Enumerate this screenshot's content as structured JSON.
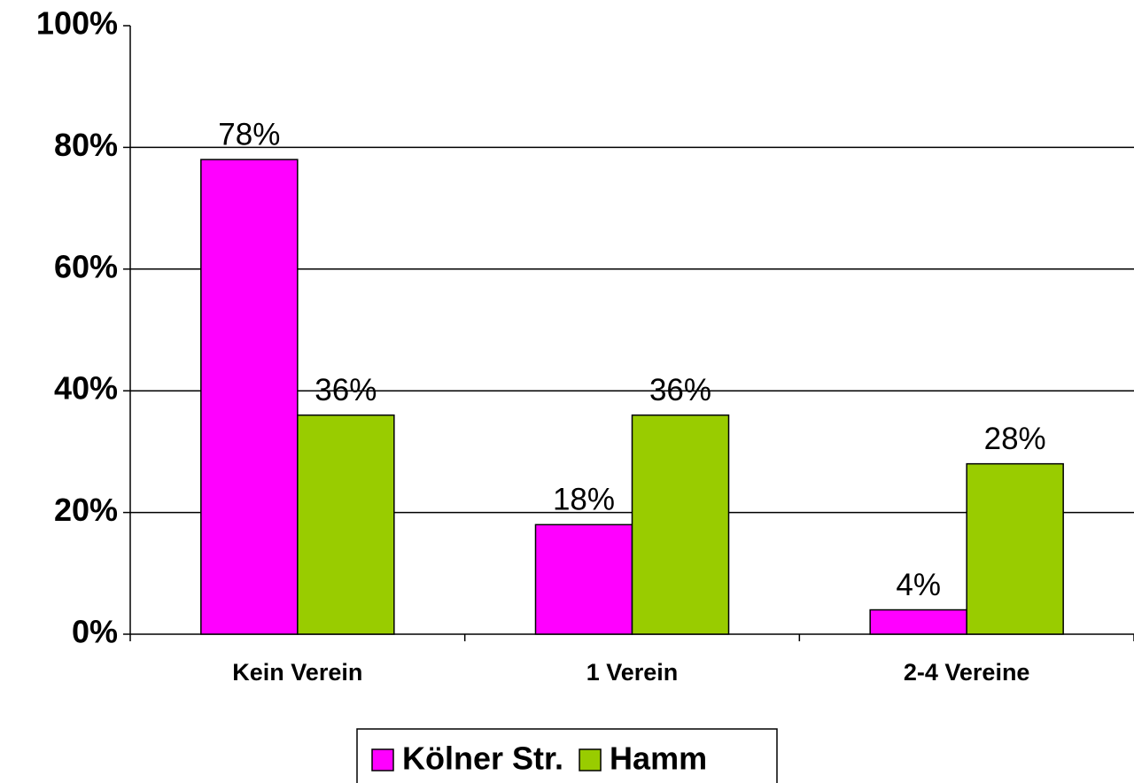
{
  "chart_data": {
    "type": "bar",
    "categories": [
      "Kein Verein",
      "1 Verein",
      "2-4 Vereine"
    ],
    "series": [
      {
        "name": "Kölner Str.",
        "color": "#ff00ff",
        "values": [
          78,
          18,
          4
        ],
        "value_labels": [
          "78%",
          "18%",
          "4%"
        ]
      },
      {
        "name": "Hamm",
        "color": "#99cc00",
        "values": [
          36,
          36,
          28
        ],
        "value_labels": [
          "36%",
          "36%",
          "28%"
        ]
      }
    ],
    "ylim": [
      0,
      100
    ],
    "yticks": [
      {
        "value": 0,
        "label": "0%"
      },
      {
        "value": 20,
        "label": "20%"
      },
      {
        "value": 40,
        "label": "40%"
      },
      {
        "value": 60,
        "label": "60%"
      },
      {
        "value": 80,
        "label": "80%"
      },
      {
        "value": 100,
        "label": "100%"
      }
    ],
    "grid": true,
    "legend": "bottom"
  }
}
